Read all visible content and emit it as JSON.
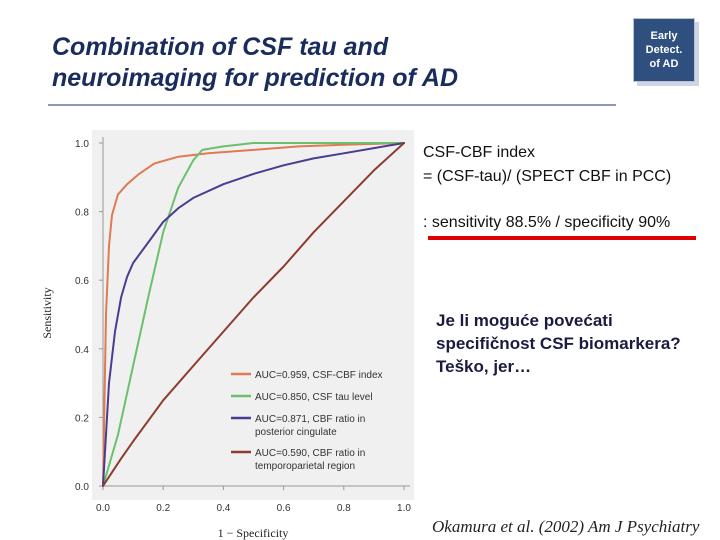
{
  "slide": {
    "title_line1": "Combination of CSF tau and",
    "title_line2": "neuroimaging for prediction of AD",
    "badge": "Early\nDetect.\nof AD",
    "index_title": "CSF-CBF index",
    "index_formula": "= (CSF-tau)/ (SPECT CBF in PCC)",
    "index_result": ": sensitivity 88.5% / specificity 90%",
    "question": "Je li moguće povećati specifičnost CSF biomarkera? Teško, jer…",
    "citation": "Okamura et al. (2002) Am J Psychiatry"
  },
  "chart_data": {
    "type": "line",
    "title": "",
    "xlabel": "1 − Specificity",
    "ylabel": "Sensitivity",
    "xlim": [
      0,
      1
    ],
    "ylim": [
      0,
      1
    ],
    "x_ticks": [
      "0.0",
      "0.2",
      "0.4",
      "0.6",
      "0.8",
      "1.0"
    ],
    "y_ticks": [
      "0.0",
      "0.2",
      "0.4",
      "0.6",
      "0.8",
      "1.0"
    ],
    "grid": false,
    "legend_position": "bottom-right",
    "series": [
      {
        "name": "AUC=0.959, CSF-CBF index",
        "color": "#e07a52",
        "x": [
          0,
          0.01,
          0.02,
          0.03,
          0.05,
          0.08,
          0.12,
          0.17,
          0.25,
          0.35,
          0.5,
          0.65,
          0.8,
          1.0
        ],
        "y": [
          0,
          0.5,
          0.7,
          0.79,
          0.85,
          0.88,
          0.91,
          0.94,
          0.96,
          0.97,
          0.98,
          0.99,
          0.995,
          1.0
        ]
      },
      {
        "name": "AUC=0.850, CSF tau level",
        "color": "#6cc06c",
        "x": [
          0,
          0.05,
          0.1,
          0.15,
          0.2,
          0.25,
          0.3,
          0.33,
          0.4,
          0.5,
          1.0
        ],
        "y": [
          0,
          0.15,
          0.35,
          0.55,
          0.74,
          0.87,
          0.95,
          0.98,
          0.99,
          1.0,
          1.0
        ]
      },
      {
        "name": "AUC=0.871, CBF ratio in posterior cingulate",
        "color": "#4a3c90",
        "x": [
          0,
          0.01,
          0.02,
          0.04,
          0.06,
          0.08,
          0.1,
          0.15,
          0.2,
          0.25,
          0.3,
          0.4,
          0.5,
          0.6,
          0.7,
          0.8,
          0.9,
          1.0
        ],
        "y": [
          0,
          0.15,
          0.3,
          0.45,
          0.55,
          0.61,
          0.65,
          0.71,
          0.77,
          0.81,
          0.84,
          0.88,
          0.91,
          0.935,
          0.955,
          0.97,
          0.985,
          1.0
        ]
      },
      {
        "name": "AUC=0.590, CBF ratio in temporoparietal region",
        "color": "#8c3c2e",
        "x": [
          0,
          0.03,
          0.06,
          0.1,
          0.15,
          0.2,
          0.3,
          0.4,
          0.5,
          0.6,
          0.7,
          0.8,
          0.9,
          1.0
        ],
        "y": [
          0,
          0.04,
          0.08,
          0.13,
          0.19,
          0.25,
          0.35,
          0.45,
          0.55,
          0.64,
          0.74,
          0.83,
          0.92,
          1.0
        ]
      }
    ],
    "legend_lines": [
      [
        "AUC=0.959, CSF-CBF index"
      ],
      [
        "AUC=0.850, CSF tau level"
      ],
      [
        "AUC=0.871, CBF ratio in",
        "posterior cingulate"
      ],
      [
        "AUC=0.590, CBF ratio in",
        "temporoparietal region"
      ]
    ]
  }
}
